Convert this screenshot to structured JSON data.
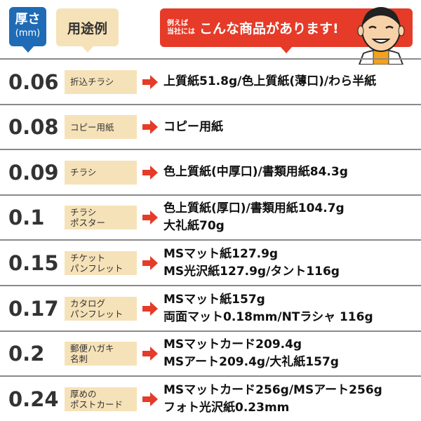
{
  "header": {
    "thickness_label": "厚さ",
    "thickness_unit": "(mm)",
    "usage_label": "用途例",
    "products_prefix_1": "例えば",
    "products_prefix_2": "当社には",
    "products_label": "こんな商品があります!"
  },
  "colors": {
    "blue": "#1f6bb5",
    "beige": "#f6e2b8",
    "red": "#e53b28"
  },
  "rows": [
    {
      "thickness": "0.06",
      "usage": [
        "折込チラシ"
      ],
      "products": [
        "上質紙51.8g/色上質紙(薄口)/わら半紙"
      ]
    },
    {
      "thickness": "0.08",
      "usage": [
        "コピー用紙"
      ],
      "products": [
        "コピー用紙"
      ]
    },
    {
      "thickness": "0.09",
      "usage": [
        "チラシ"
      ],
      "products": [
        "色上質紙(中厚口)/書類用紙84.3g"
      ]
    },
    {
      "thickness": "0.1",
      "usage": [
        "チラシ",
        "ポスター"
      ],
      "products": [
        "色上質紙(厚口)/書類用紙104.7g",
        "大礼紙70g"
      ]
    },
    {
      "thickness": "0.15",
      "usage": [
        "チケット",
        "パンフレット"
      ],
      "products": [
        "MSマット紙127.9g",
        "MS光沢紙127.9g/タント116g"
      ]
    },
    {
      "thickness": "0.17",
      "usage": [
        "カタログ",
        "パンフレット"
      ],
      "products": [
        "MSマット紙157g",
        "両面マット0.18mm/NTラシャ 116g"
      ]
    },
    {
      "thickness": "0.2",
      "usage": [
        "郵便ハガキ",
        "名刺"
      ],
      "products": [
        "MSマットカード209.4g",
        "MSアート209.4g/大礼紙157g"
      ]
    },
    {
      "thickness": "0.24",
      "usage": [
        "厚めの",
        "ポストカード"
      ],
      "products": [
        "MSマットカード256g/MSアート256g",
        "フォト光沢紙0.23mm"
      ]
    }
  ]
}
